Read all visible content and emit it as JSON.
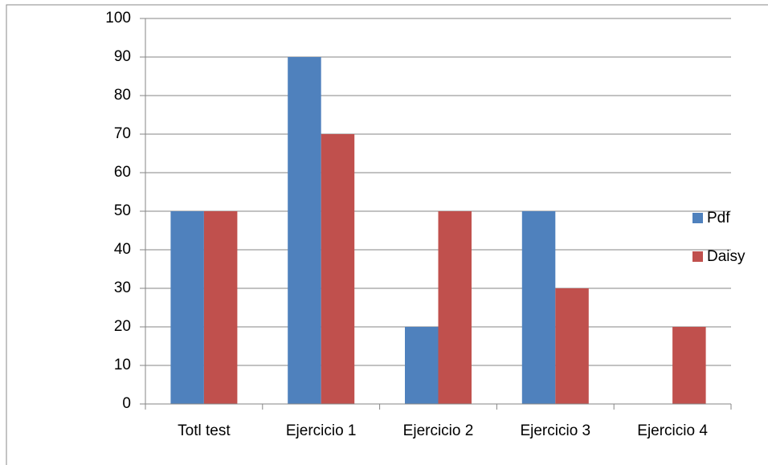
{
  "chart_data": {
    "type": "bar",
    "categories": [
      "Totl test",
      "Ejercicio 1",
      "Ejercicio 2",
      "Ejercicio 3",
      "Ejercicio 4"
    ],
    "series": [
      {
        "name": "Pdf",
        "color": "#4f81bd",
        "values": [
          50,
          90,
          20,
          50,
          0
        ]
      },
      {
        "name": "Daisy",
        "color": "#c0504d",
        "values": [
          50,
          70,
          50,
          30,
          20
        ]
      }
    ],
    "ylim": [
      0,
      100
    ],
    "yticks": [
      0,
      10,
      20,
      30,
      40,
      50,
      60,
      70,
      80,
      90,
      100
    ],
    "grid": true,
    "legend": "right"
  }
}
